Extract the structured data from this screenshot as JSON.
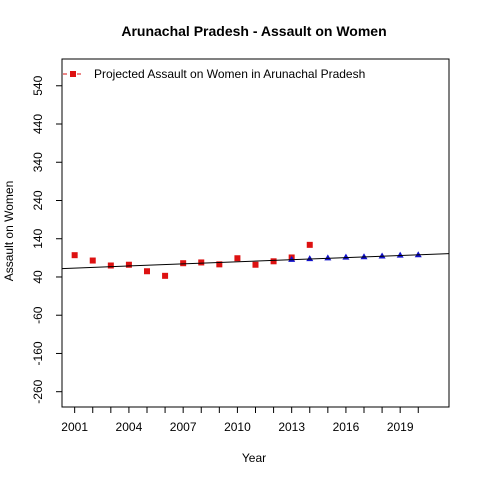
{
  "chart_data": {
    "type": "scatter",
    "title": "Arunachal Pradesh  -  Assault on Women",
    "xlabel": "Year",
    "ylabel": "Assault on Women",
    "xlim": [
      2000.3,
      2021.7
    ],
    "ylim": [
      -300,
      610
    ],
    "x_ticks": [
      2001,
      2002,
      2003,
      2004,
      2005,
      2006,
      2007,
      2008,
      2009,
      2010,
      2011,
      2012,
      2013,
      2014,
      2015,
      2016,
      2017,
      2018,
      2019,
      2020
    ],
    "x_tick_labels": [
      "2001",
      "2004",
      "2007",
      "2010",
      "2013",
      "2016",
      "2019"
    ],
    "y_ticks": [
      -260,
      -160,
      -60,
      40,
      140,
      240,
      340,
      440,
      540
    ],
    "y_tick_labels": [
      "-260",
      "-160",
      "-60",
      "40",
      "140",
      "240",
      "340",
      "440",
      "540"
    ],
    "legend": {
      "position": "top-left",
      "label": "Projected  Assault on Women  in  Arunachal Pradesh"
    },
    "series": [
      {
        "kind": "actual",
        "marker": "square",
        "color": "#dd1111",
        "x": [
          2001,
          2002,
          2003,
          2004,
          2005,
          2006,
          2007,
          2008,
          2009,
          2010,
          2011,
          2012,
          2013,
          2014
        ],
        "y": [
          97,
          83,
          70,
          72,
          55,
          43,
          76,
          78,
          73,
          89,
          72,
          81,
          91,
          124
        ]
      },
      {
        "kind": "projected",
        "marker": "triangle",
        "color": "#1111cc",
        "x": [
          2013,
          2014,
          2015,
          2016,
          2017,
          2018,
          2019,
          2020
        ],
        "y": [
          86,
          88,
          90,
          92,
          93,
          95,
          97,
          98
        ]
      },
      {
        "kind": "trend",
        "style": "line",
        "color": "#000000",
        "x": [
          2000.3,
          2021.7
        ],
        "y": [
          62,
          101
        ]
      }
    ],
    "grid": false
  }
}
